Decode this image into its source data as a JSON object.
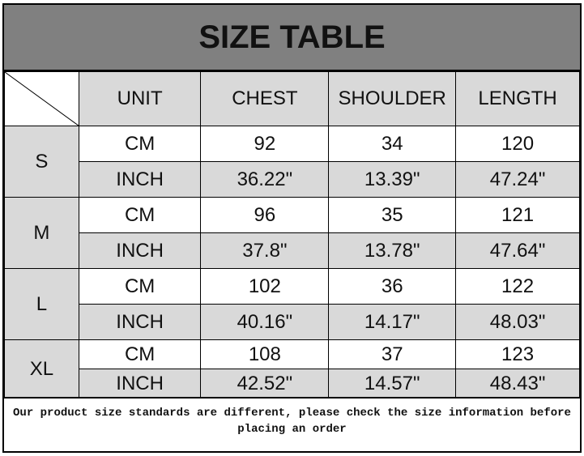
{
  "title": "SIZE TABLE",
  "headers": [
    "UNIT",
    "CHEST",
    "SHOULDER",
    "LENGTH"
  ],
  "rows": [
    {
      "size": "S",
      "cm": [
        "CM",
        "92",
        "34",
        "120"
      ],
      "inch": [
        "INCH",
        "36.22\"",
        "13.39\"",
        "47.24\""
      ]
    },
    {
      "size": "M",
      "cm": [
        "CM",
        "96",
        "35",
        "121"
      ],
      "inch": [
        "INCH",
        "37.8\"",
        "13.78\"",
        "47.64\""
      ]
    },
    {
      "size": "L",
      "cm": [
        "CM",
        "102",
        "36",
        "122"
      ],
      "inch": [
        "INCH",
        "40.16\"",
        "14.17\"",
        "48.03\""
      ]
    },
    {
      "size": "XL",
      "cm": [
        "CM",
        "108",
        "37",
        "123"
      ],
      "inch": [
        "INCH",
        "42.52\"",
        "14.57\"",
        "48.43\""
      ]
    }
  ],
  "note": "Our product size standards are different, please check the size information before placing an order",
  "colors": {
    "title_bg": "#808080",
    "cell_gray": "#d9d9d9"
  }
}
